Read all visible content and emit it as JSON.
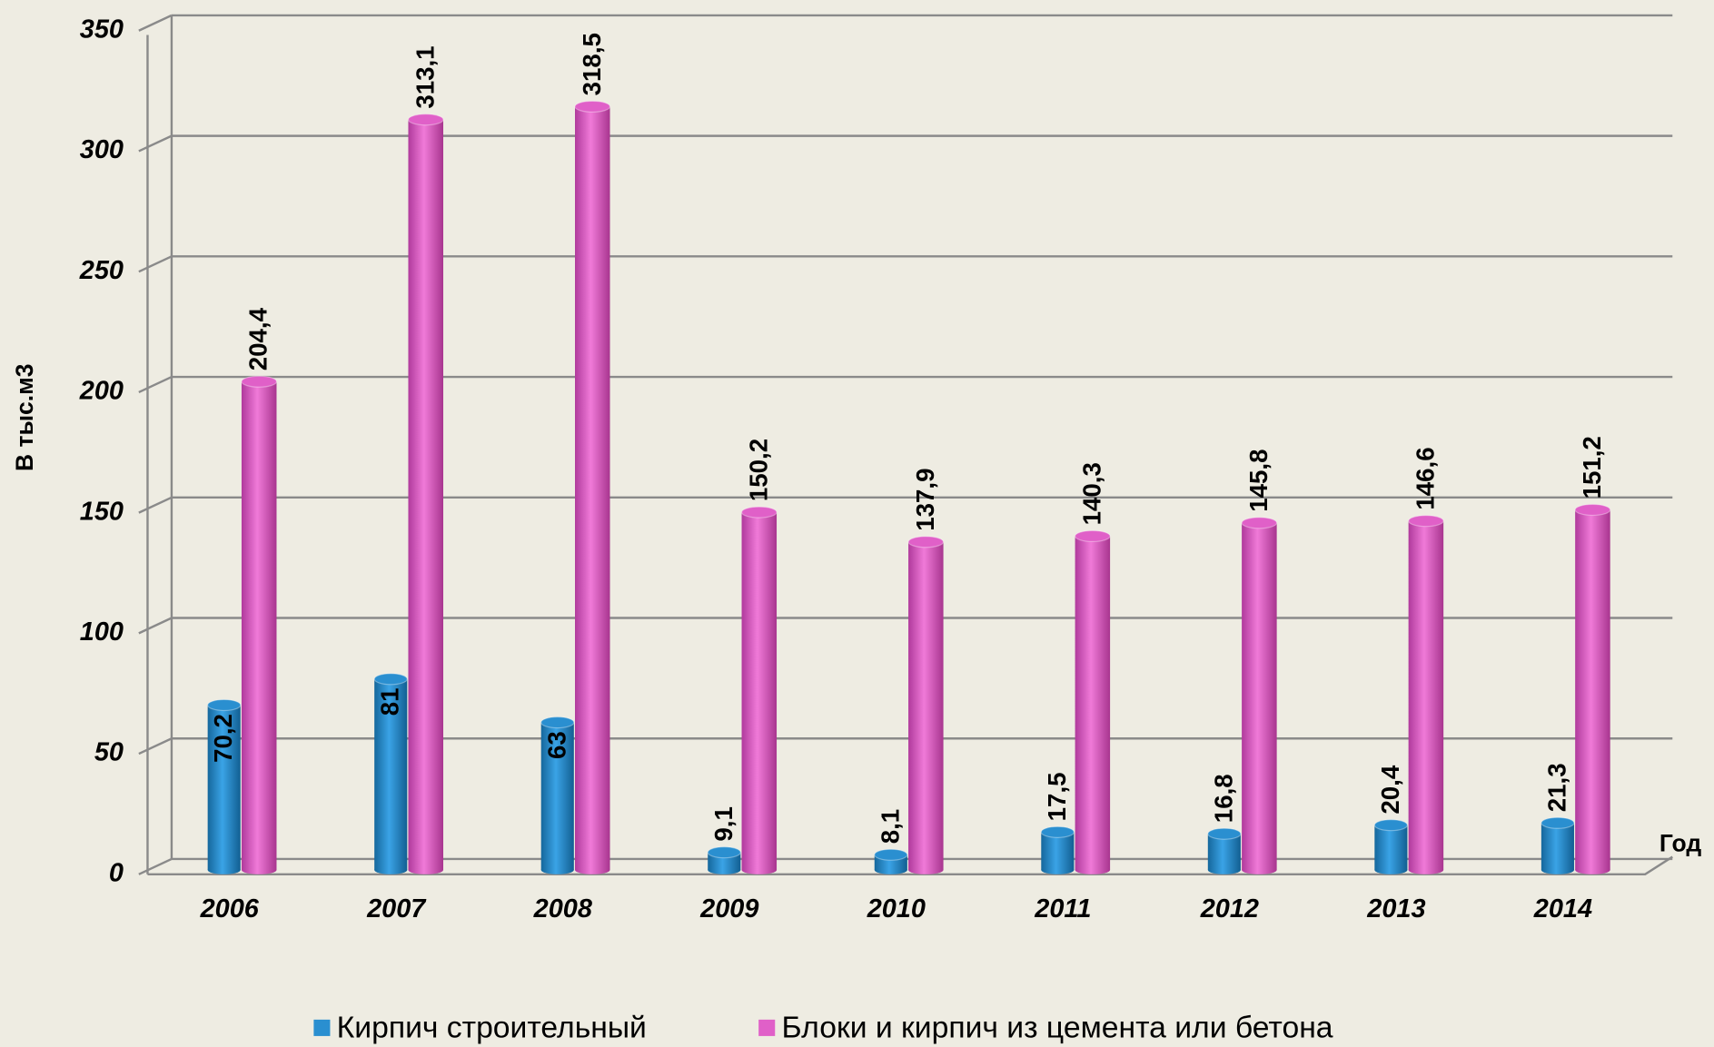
{
  "chart_data": {
    "type": "bar",
    "y_label": "В тыс.м3",
    "x_label": "Год",
    "categories": [
      "2006",
      "2007",
      "2008",
      "2009",
      "2010",
      "2011",
      "2012",
      "2013",
      "2014"
    ],
    "series": [
      {
        "name": "Кирпич строительный",
        "color": "#2a8fd0",
        "values": [
          70.2,
          81,
          63,
          9.1,
          8.1,
          17.5,
          16.8,
          20.4,
          21.3
        ],
        "value_labels": [
          "70,2",
          "81",
          "63",
          "9,1",
          "8,1",
          "17,5",
          "16,8",
          "20,4",
          "21,3"
        ]
      },
      {
        "name": "Блоки и кирпич из цемента или бетона",
        "color": "#e060c8",
        "values": [
          204.4,
          313.1,
          318.5,
          150.2,
          137.9,
          140.3,
          145.8,
          146.6,
          151.2
        ],
        "value_labels": [
          "204,4",
          "313,1",
          "318,5",
          "150,2",
          "137,9",
          "140,3",
          "145,8",
          "146,6",
          "151,2"
        ]
      }
    ],
    "ylim": [
      0,
      350
    ],
    "yticks": [
      0,
      50,
      100,
      150,
      200,
      250,
      300,
      350
    ],
    "grid": true,
    "legend": "bottom"
  }
}
